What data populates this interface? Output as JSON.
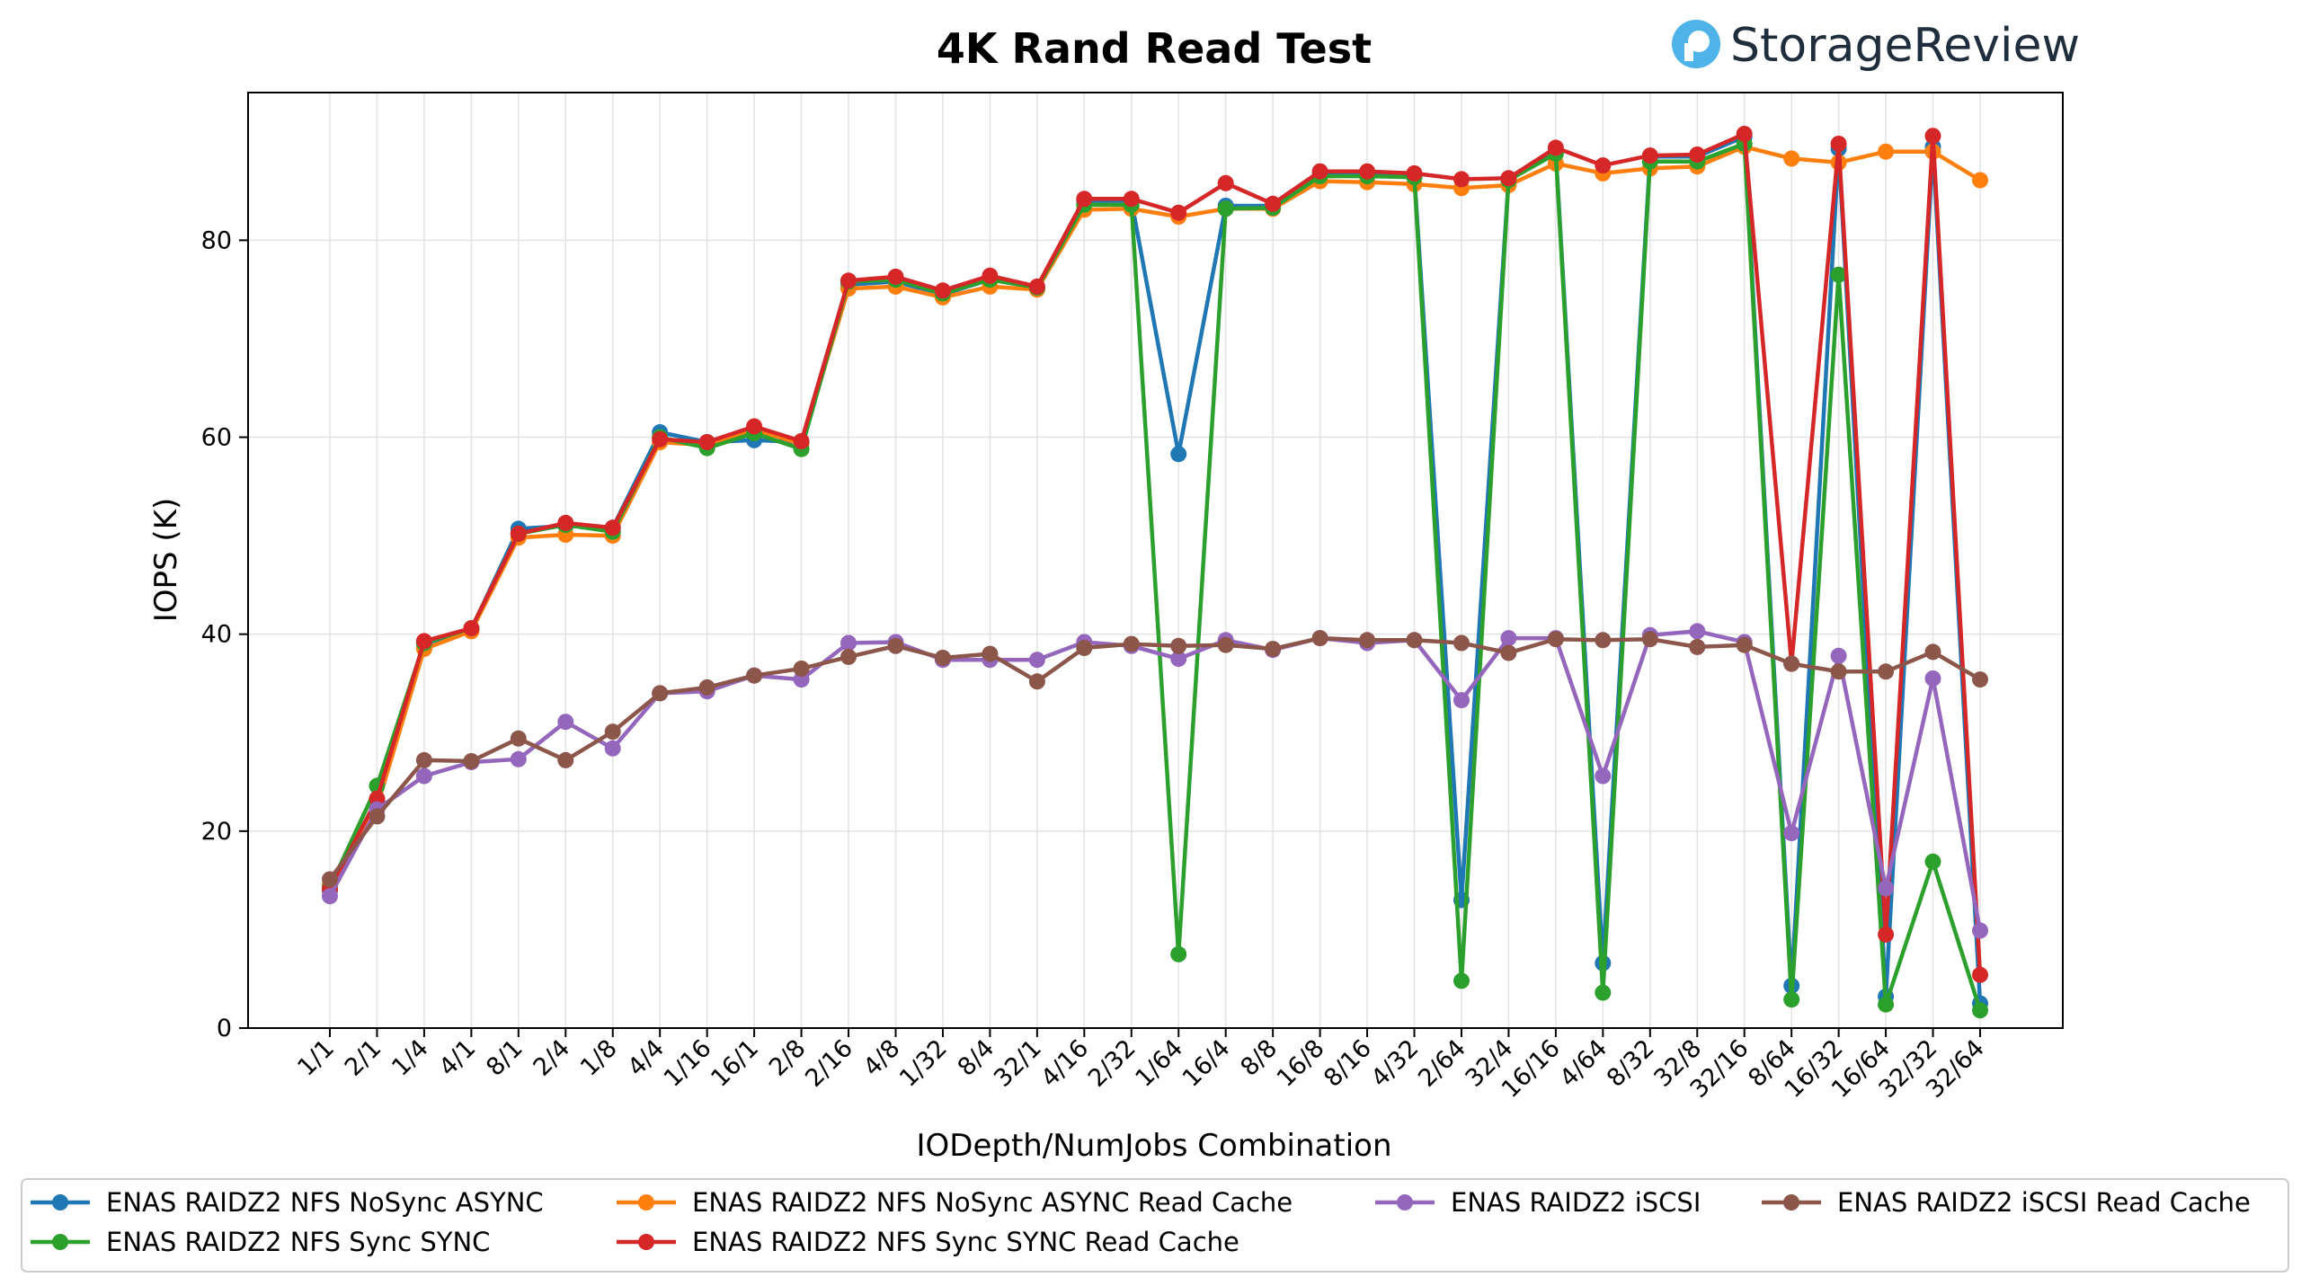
{
  "brand": {
    "name": "StorageReview",
    "logo_icon": "storagereview-logo-icon",
    "logo_color": "#4db3e8"
  },
  "chart_data": {
    "type": "line",
    "title": "4K Rand Read Test",
    "xlabel": "IODepth/NumJobs Combination",
    "ylabel": "IOPS (K)",
    "ylim": [
      0,
      95
    ],
    "yticks": [
      0,
      20,
      40,
      60,
      80
    ],
    "grid": true,
    "legend_position": "bottom",
    "categories": [
      "1/1",
      "2/1",
      "1/4",
      "4/1",
      "8/1",
      "2/4",
      "1/8",
      "4/4",
      "1/16",
      "16/1",
      "2/8",
      "2/16",
      "4/8",
      "1/32",
      "8/4",
      "32/1",
      "4/16",
      "2/32",
      "1/64",
      "16/4",
      "8/8",
      "16/8",
      "8/16",
      "4/32",
      "2/64",
      "32/4",
      "16/16",
      "4/64",
      "8/32",
      "32/8",
      "32/16",
      "8/64",
      "16/32",
      "16/64",
      "32/32",
      "32/64"
    ],
    "series": [
      {
        "name": "ENAS RAIDZ2 NFS NoSync ASYNC",
        "color": "#1f77b4",
        "values": [
          14.0,
          23.0,
          39.0,
          40.5,
          50.7,
          51.0,
          50.8,
          60.5,
          59.5,
          59.7,
          59.5,
          75.5,
          75.8,
          74.5,
          76.0,
          75.2,
          84.0,
          84.0,
          58.3,
          83.5,
          83.5,
          86.8,
          86.8,
          86.6,
          13.0,
          86.2,
          89.0,
          6.6,
          88.5,
          88.5,
          90.5,
          4.3,
          89.3,
          3.2,
          89.5,
          2.5
        ]
      },
      {
        "name": "ENAS RAIDZ2 NFS NoSync ASYNC Read Cache",
        "color": "#ff7f0e",
        "values": [
          14.5,
          22.5,
          38.5,
          40.3,
          49.8,
          50.1,
          50.0,
          59.5,
          59.2,
          60.8,
          59.3,
          75.1,
          75.3,
          74.2,
          75.3,
          75.0,
          83.1,
          83.2,
          82.4,
          83.2,
          83.2,
          86.0,
          85.9,
          85.7,
          85.3,
          85.6,
          87.8,
          86.8,
          87.3,
          87.5,
          89.5,
          88.3,
          87.9,
          89.0,
          89.0,
          86.1
        ]
      },
      {
        "name": "ENAS RAIDZ2 NFS Sync SYNC",
        "color": "#2ca02c",
        "values": [
          14.3,
          24.6,
          39.1,
          40.6,
          50.2,
          51.1,
          50.4,
          60.0,
          58.9,
          60.4,
          58.8,
          75.8,
          76.0,
          74.6,
          76.0,
          75.2,
          83.6,
          83.6,
          7.5,
          83.2,
          83.3,
          86.5,
          86.5,
          86.4,
          4.8,
          86.1,
          88.8,
          3.6,
          88.0,
          88.0,
          89.8,
          2.9,
          76.5,
          2.4,
          16.9,
          1.8
        ]
      },
      {
        "name": "ENAS RAIDZ2 NFS Sync SYNC Read Cache",
        "color": "#d62728",
        "values": [
          14.1,
          23.3,
          39.3,
          40.6,
          50.2,
          51.3,
          50.8,
          59.8,
          59.5,
          61.1,
          59.6,
          75.9,
          76.3,
          74.9,
          76.4,
          75.3,
          84.2,
          84.2,
          82.8,
          85.8,
          83.7,
          87.0,
          87.0,
          86.8,
          86.2,
          86.3,
          89.4,
          87.6,
          88.6,
          88.7,
          90.8,
          37.0,
          89.8,
          9.5,
          90.6,
          5.4
        ]
      },
      {
        "name": "ENAS RAIDZ2 iSCSI",
        "color": "#9467bd",
        "values": [
          13.4,
          22.2,
          25.6,
          27.0,
          27.3,
          31.1,
          28.4,
          34.0,
          34.2,
          35.8,
          35.4,
          39.1,
          39.2,
          37.4,
          37.4,
          37.4,
          39.2,
          38.8,
          37.5,
          39.4,
          38.4,
          39.6,
          39.1,
          39.4,
          33.3,
          39.6,
          39.6,
          25.6,
          39.9,
          40.3,
          39.2,
          19.8,
          37.8,
          14.2,
          35.5,
          9.9
        ]
      },
      {
        "name": "ENAS RAIDZ2 iSCSI Read Cache",
        "color": "#8c564b",
        "values": [
          15.1,
          21.5,
          27.2,
          27.1,
          29.4,
          27.2,
          30.1,
          34.0,
          34.6,
          35.8,
          36.5,
          37.7,
          38.8,
          37.6,
          38.0,
          35.2,
          38.6,
          39.0,
          38.8,
          38.9,
          38.5,
          39.6,
          39.4,
          39.4,
          39.1,
          38.1,
          39.5,
          39.4,
          39.5,
          38.7,
          38.9,
          37.0,
          36.2,
          36.2,
          38.2,
          35.4
        ]
      }
    ]
  }
}
